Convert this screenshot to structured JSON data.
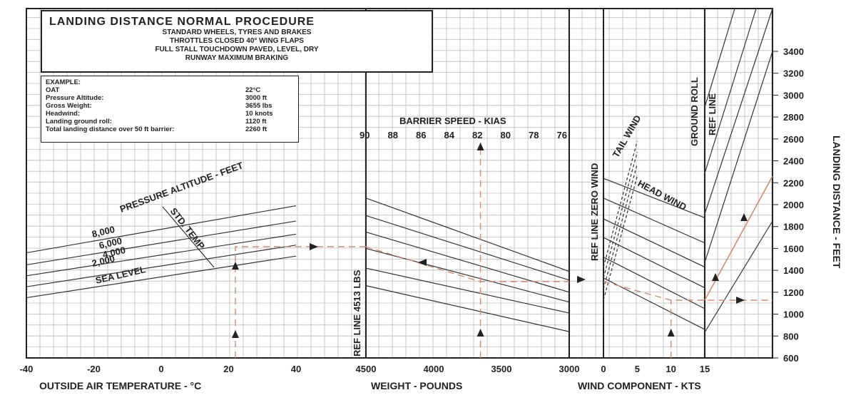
{
  "title_box": {
    "title": "LANDING DISTANCE NORMAL PROCEDURE",
    "lines": [
      "STANDARD WHEELS, TYRES AND BRAKES",
      "THROTTLES CLOSED     40° WING FLAPS",
      "FULL STALL TOUCHDOWN     PAVED, LEVEL, DRY",
      "RUNWAY MAXIMUM BRAKING"
    ]
  },
  "example": {
    "header": "EXAMPLE:",
    "rows": [
      {
        "label": "OAT",
        "value": "22°C"
      },
      {
        "label": "Pressure Altitude:",
        "value": "3000 ft"
      },
      {
        "label": "Gross Weight:",
        "value": "3655 lbs"
      },
      {
        "label": "Headwind:",
        "value": "10 knots"
      },
      {
        "label": "Landing ground roll:",
        "value": "1120 ft"
      },
      {
        "label": "Total landing distance over 50 ft barrier:",
        "value": "2260 ft"
      }
    ]
  },
  "chart_data": {
    "type": "line",
    "title": "LANDING DISTANCE NORMAL PROCEDURE",
    "panels": [
      {
        "name": "temperature",
        "xlabel": "OUTSIDE AIR TEMPERATURE - °C",
        "xlim": [
          -40,
          40
        ],
        "xticks": [
          -40,
          -20,
          0,
          20,
          40
        ],
        "curve_title": "PRESSURE ALTITUDE - FEET",
        "std_temp_label": "STD. TEMP",
        "series": [
          {
            "name": "SEA LEVEL",
            "x": [
              -40,
              40
            ],
            "y": [
              1150,
              1530
            ]
          },
          {
            "name": "2,000",
            "x": [
              -40,
              40
            ],
            "y": [
              1250,
              1630
            ]
          },
          {
            "name": "4,000",
            "x": [
              -40,
              40
            ],
            "y": [
              1350,
              1730
            ]
          },
          {
            "name": "6,000",
            "x": [
              -40,
              40
            ],
            "y": [
              1450,
              1850
            ]
          },
          {
            "name": "8,000",
            "x": [
              -40,
              40
            ],
            "y": [
              1560,
              1990
            ]
          }
        ],
        "std_temp_line": {
          "x": [
            0,
            32
          ],
          "y": [
            1980,
            1460
          ]
        }
      },
      {
        "name": "weight",
        "xlabel": "WEIGHT - POUNDS",
        "xlim": [
          4500,
          3000
        ],
        "xticks": [
          4500,
          4000,
          3500,
          3000
        ],
        "ref_line_label": "REF LINE 4513 LBS",
        "barrier_title": "BARRIER SPEED - KIAS",
        "barrier_speeds": [
          "90",
          "88",
          "86",
          "84",
          "82",
          "80",
          "78",
          "76"
        ],
        "guide_lines": [
          {
            "x": [
              4500,
              3000
            ],
            "y": [
              2060,
              1390
            ]
          },
          {
            "x": [
              4500,
              3000
            ],
            "y": [
              1900,
              1310
            ]
          },
          {
            "x": [
              4500,
              3000
            ],
            "y": [
              1750,
              1200
            ]
          },
          {
            "x": [
              4500,
              3000
            ],
            "y": [
              1600,
              1110
            ]
          },
          {
            "x": [
              4500,
              3000
            ],
            "y": [
              1420,
              1010
            ]
          },
          {
            "x": [
              4500,
              3000
            ],
            "y": [
              1260,
              840
            ]
          }
        ]
      },
      {
        "name": "wind",
        "xlabel": "WIND COMPONENT - KTS",
        "xlim": [
          0,
          15
        ],
        "xticks": [
          0,
          5,
          10,
          15
        ],
        "zero_wind_label": "REF LINE ZERO WIND",
        "tail_wind_label": "TAIL WIND",
        "head_wind_label": "HEAD WIND",
        "guide_lines": [
          {
            "x": [
              0,
              15
            ],
            "y": [
              2240,
              1880
            ]
          },
          {
            "x": [
              0,
              15
            ],
            "y": [
              2060,
              1650
            ]
          },
          {
            "x": [
              0,
              15
            ],
            "y": [
              1870,
              1430
            ]
          },
          {
            "x": [
              0,
              15
            ],
            "y": [
              1700,
              1240
            ]
          },
          {
            "x": [
              0,
              15
            ],
            "y": [
              1520,
              1050
            ]
          },
          {
            "x": [
              0,
              15
            ],
            "y": [
              1330,
              860
            ]
          }
        ],
        "tail_lines": [
          {
            "x": [
              0,
              5
            ],
            "y": [
              1130,
              2260
            ]
          },
          {
            "x": [
              0,
              5
            ],
            "y": [
              1230,
              2370
            ]
          },
          {
            "x": [
              0,
              5
            ],
            "y": [
              1330,
              2480
            ]
          },
          {
            "x": [
              0,
              5
            ],
            "y": [
              1430,
              2580
            ]
          }
        ]
      },
      {
        "name": "ground_roll",
        "ref_line_label": "REF LINE",
        "ground_roll_label": "GROUND ROLL",
        "guide_lines": [
          {
            "x": [
              0,
              1
            ],
            "y": [
              840,
              1800
            ]
          },
          {
            "x": [
              0,
              1
            ],
            "y": [
              1260,
              2860
            ]
          },
          {
            "x": [
              0,
              1
            ],
            "y": [
              1550,
              3400
            ]
          },
          {
            "x": [
              0,
              1
            ],
            "y": [
              1900,
              3500
            ]
          },
          {
            "x": [
              0,
              1
            ],
            "y": [
              2420,
              3500
            ]
          }
        ]
      }
    ],
    "ylabel": "LANDING DISTANCE - FEET",
    "ylim": [
      600,
      3400
    ],
    "yticks": [
      600,
      800,
      1000,
      1200,
      1400,
      1600,
      1800,
      2000,
      2200,
      2400,
      2600,
      2800,
      3000,
      3200,
      3400
    ],
    "example_path": {
      "oat_c": 22,
      "pressure_altitude_ft": 3000,
      "weight_lbs": 3655,
      "headwind_kts": 10,
      "ground_roll_ft": 1120,
      "total_distance_ft": 2260
    },
    "grid": true
  }
}
